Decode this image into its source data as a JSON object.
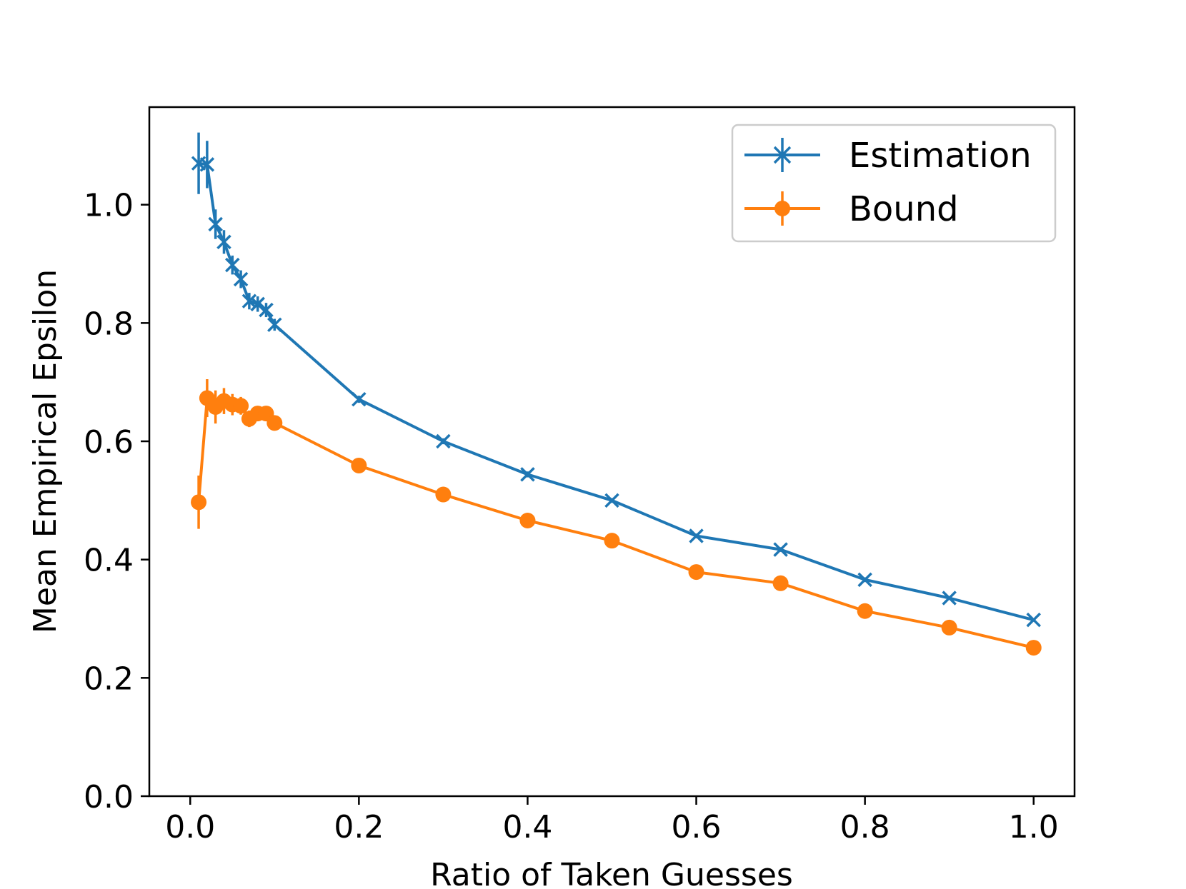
{
  "chart_data": {
    "type": "line",
    "title": "",
    "xlabel": "Ratio of Taken Guesses",
    "ylabel": "Mean Empirical Epsilon",
    "xlim": [
      -0.0485,
      1.0485
    ],
    "ylim": [
      0.0,
      1.165
    ],
    "xticks": [
      0.0,
      0.2,
      0.4,
      0.6,
      0.8,
      1.0
    ],
    "xtick_labels": [
      "0.0",
      "0.2",
      "0.4",
      "0.6",
      "0.8",
      "1.0"
    ],
    "yticks": [
      0.0,
      0.2,
      0.4,
      0.6,
      0.8,
      1.0
    ],
    "ytick_labels": [
      "0.0",
      "0.2",
      "0.4",
      "0.6",
      "0.8",
      "1.0"
    ],
    "grid": false,
    "legend_position": "top-right",
    "series": [
      {
        "name": "Estimation",
        "color": "#1f77b4",
        "marker": "x",
        "x": [
          0.01,
          0.02,
          0.03,
          0.04,
          0.05,
          0.06,
          0.07,
          0.08,
          0.09,
          0.1,
          0.2,
          0.3,
          0.4,
          0.5,
          0.6,
          0.7,
          0.8,
          0.9,
          1.0
        ],
        "y": [
          1.07,
          1.068,
          0.967,
          0.937,
          0.898,
          0.874,
          0.837,
          0.832,
          0.822,
          0.797,
          0.671,
          0.6,
          0.544,
          0.5,
          0.44,
          0.417,
          0.366,
          0.335,
          0.298
        ],
        "yerr": [
          0.052,
          0.04,
          0.025,
          0.02,
          0.016,
          0.015,
          0.014,
          0.013,
          0.012,
          0.01,
          0.006,
          0.005,
          0.005,
          0.004,
          0.004,
          0.004,
          0.004,
          0.003,
          0.003
        ]
      },
      {
        "name": "Bound",
        "color": "#ff7f0e",
        "marker": "o",
        "x": [
          0.01,
          0.02,
          0.03,
          0.04,
          0.05,
          0.06,
          0.07,
          0.08,
          0.09,
          0.1,
          0.2,
          0.3,
          0.4,
          0.5,
          0.6,
          0.7,
          0.8,
          0.9,
          1.0
        ],
        "y": [
          0.497,
          0.673,
          0.658,
          0.668,
          0.662,
          0.66,
          0.638,
          0.647,
          0.647,
          0.631,
          0.559,
          0.51,
          0.466,
          0.432,
          0.379,
          0.36,
          0.313,
          0.285,
          0.251
        ],
        "yerr": [
          0.045,
          0.032,
          0.028,
          0.022,
          0.018,
          0.015,
          0.014,
          0.012,
          0.01,
          0.008,
          0.006,
          0.005,
          0.005,
          0.004,
          0.004,
          0.004,
          0.004,
          0.003,
          0.003
        ]
      }
    ]
  }
}
